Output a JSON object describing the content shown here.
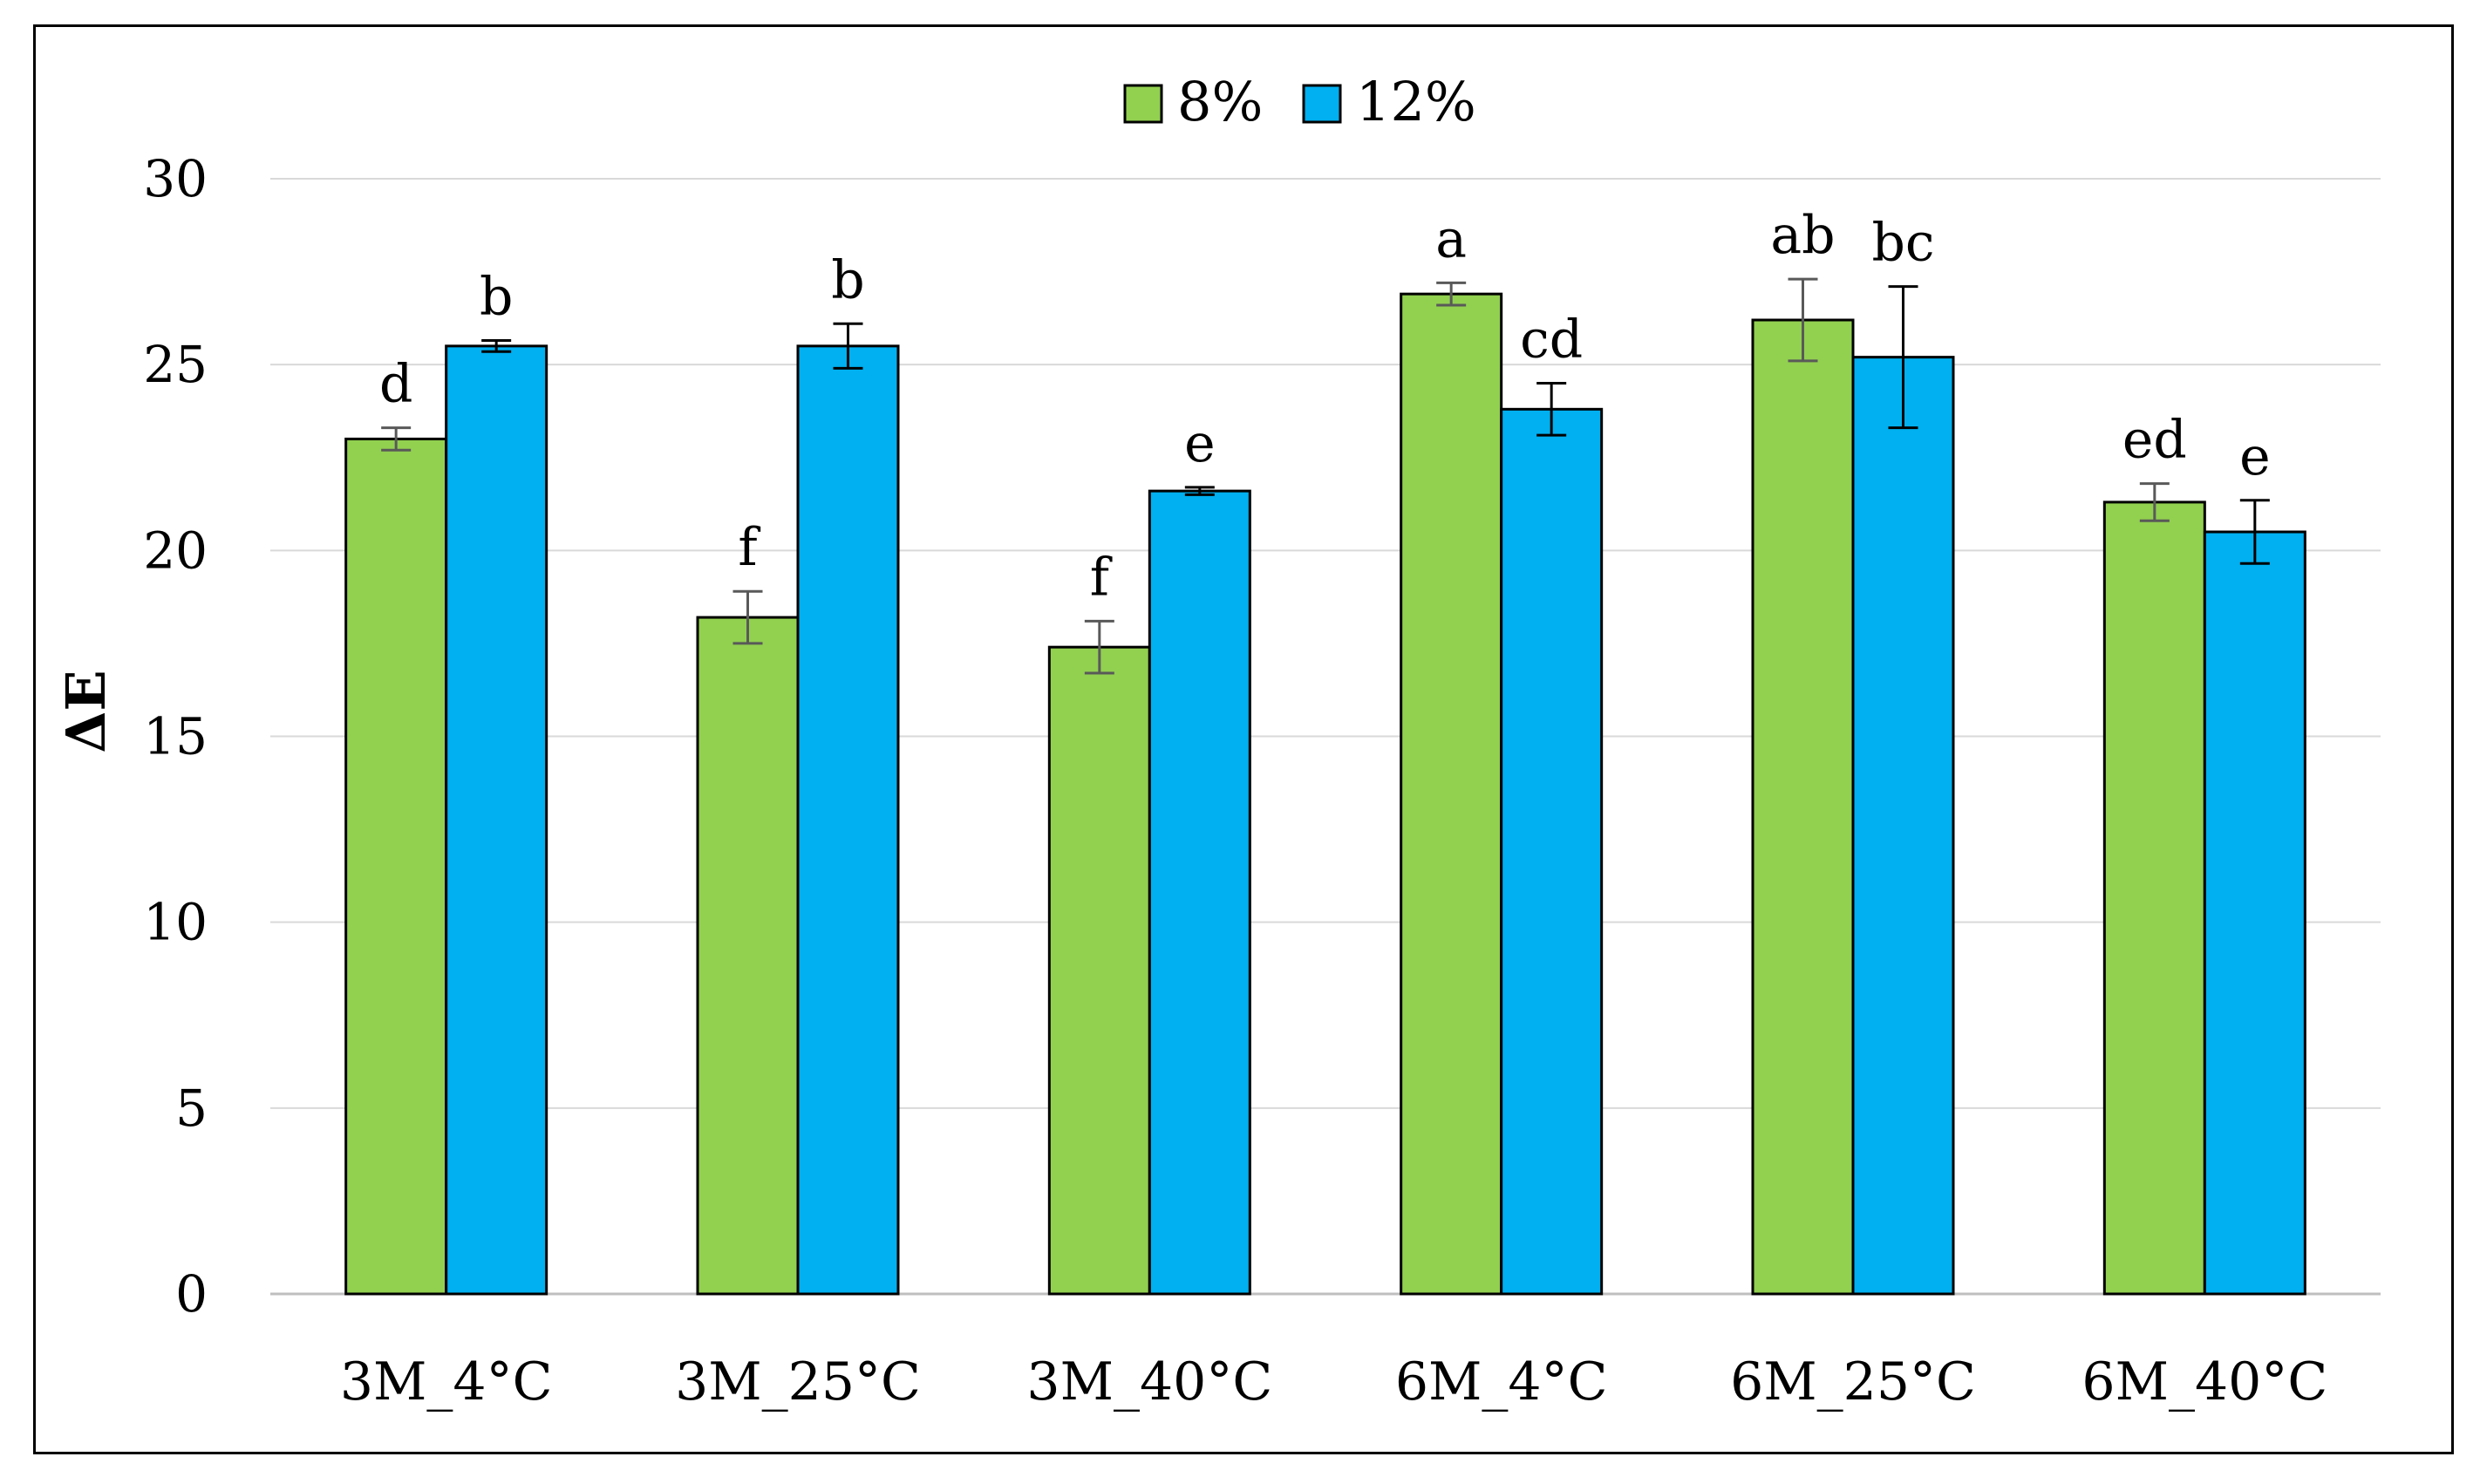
{
  "chart_data": {
    "type": "bar",
    "title": "",
    "xlabel": "",
    "ylabel": "ΔE",
    "ylim": [
      0,
      30
    ],
    "yticks": [
      "0",
      "5",
      "10",
      "15",
      "20",
      "25",
      "30"
    ],
    "grid": true,
    "legend_position": "top-center",
    "categories": [
      "3M_4°C",
      "3M_25°C",
      "3M_40°C",
      "6M_4°C",
      "6M_25°C",
      "6M_40°C"
    ],
    "series": [
      {
        "name": "8%",
        "color": "#92D050",
        "values": [
          23.0,
          18.2,
          17.4,
          26.9,
          26.2,
          21.3
        ],
        "errors": [
          0.3,
          0.7,
          0.7,
          0.3,
          1.1,
          0.5
        ],
        "letters": [
          "d",
          "f",
          "f",
          "a",
          "ab",
          "ed"
        ]
      },
      {
        "name": "12%",
        "color": "#00B0F0",
        "values": [
          25.5,
          25.5,
          21.6,
          23.8,
          25.2,
          20.5
        ],
        "errors": [
          0.15,
          0.6,
          0.1,
          0.7,
          1.9,
          0.85
        ],
        "letters": [
          "b",
          "b",
          "e",
          "cd",
          "bc",
          "e"
        ]
      }
    ]
  }
}
